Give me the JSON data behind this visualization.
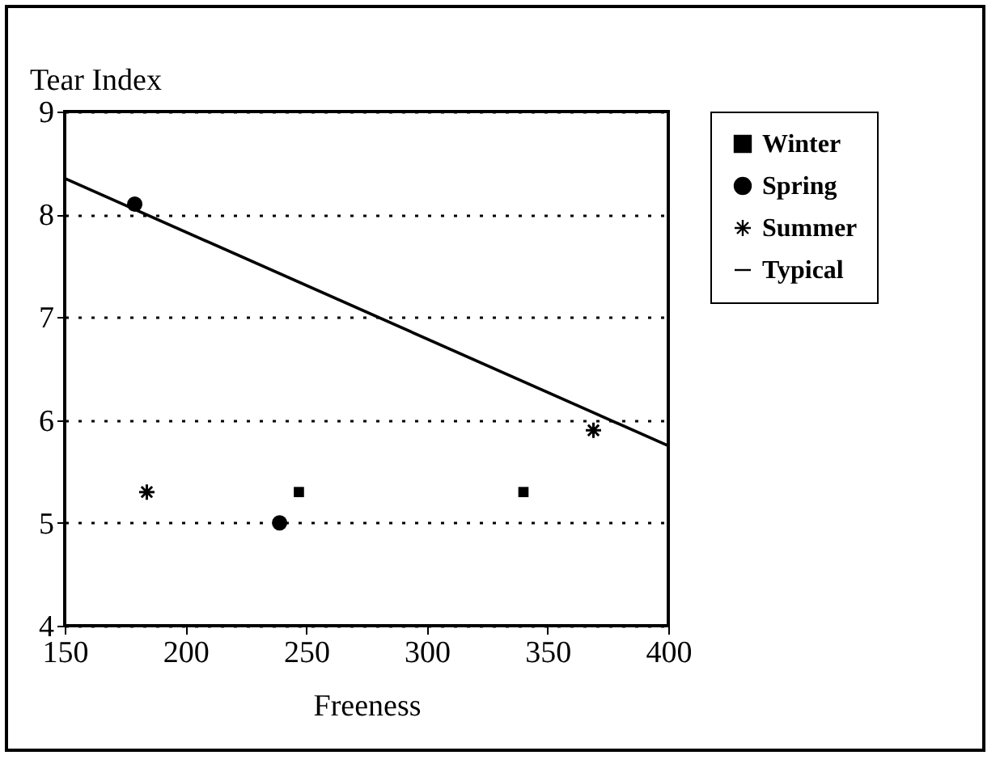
{
  "chart_data": {
    "type": "scatter",
    "xlabel": "Freeness",
    "ylabel": "Tear Index",
    "xlim": [
      150,
      400
    ],
    "xticks": [
      150,
      200,
      250,
      300,
      350,
      400
    ],
    "ylim": [
      4,
      9
    ],
    "yticks": [
      4,
      5,
      6,
      7,
      8,
      9
    ],
    "grid": "y",
    "legend": "right",
    "series": [
      {
        "name": "Winter",
        "marker": "square",
        "color": "#000000",
        "x": [
          247,
          340
        ],
        "values": [
          5.3,
          5.3
        ]
      },
      {
        "name": "Spring",
        "marker": "circle",
        "color": "#000000",
        "x": [
          179,
          239
        ],
        "values": [
          8.1,
          5.0
        ]
      },
      {
        "name": "Summer",
        "marker": "cross",
        "color": "#000000",
        "x": [
          184,
          369
        ],
        "values": [
          5.3,
          5.9
        ]
      },
      {
        "name": "Typical",
        "type": "line",
        "line_style": "solid",
        "color": "#000000",
        "x": [
          150,
          400
        ],
        "values": [
          8.35,
          5.75
        ]
      }
    ]
  }
}
